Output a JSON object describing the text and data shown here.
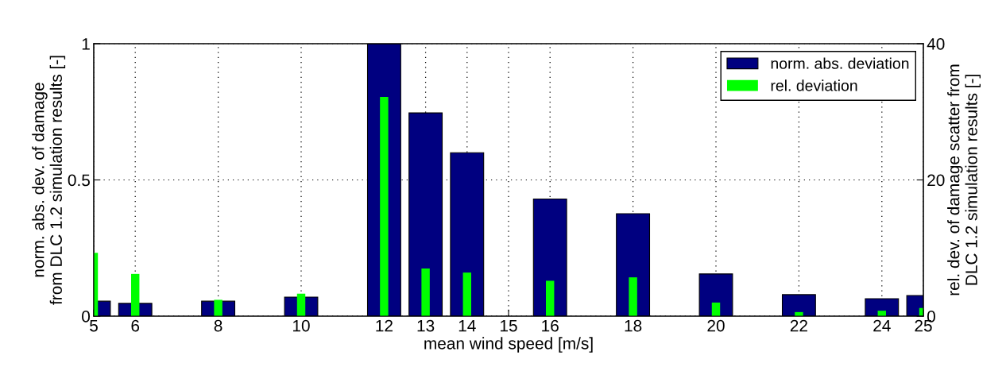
{
  "chart_data": {
    "type": "bar",
    "xlabel": "mean wind speed [m/s]",
    "ylabel": "norm. abs. dev. of damage\nfrom DLC 1.2 simulation results [-]",
    "y2label": "rel. dev. of damage scatter from\nDLC 1.2 simulation results [-]",
    "x": [
      5,
      6,
      8,
      10,
      12,
      13,
      14,
      16,
      18,
      20,
      22,
      24,
      25
    ],
    "series": [
      {
        "name": "norm. abs. deviation",
        "color": "#000080",
        "values": [
          0.055,
          0.047,
          0.055,
          0.07,
          1.0,
          0.746,
          0.6,
          0.43,
          0.376,
          0.155,
          0.079,
          0.064,
          0.076
        ]
      },
      {
        "name": "rel. deviation",
        "color": "#00ff00",
        "axis": "y2",
        "values": [
          9.3,
          6.2,
          2.4,
          3.3,
          32.2,
          7.0,
          6.4,
          5.2,
          5.7,
          2.0,
          0.6,
          0.8,
          1.2
        ]
      }
    ],
    "xlim": [
      5,
      25
    ],
    "xticks": [
      5,
      6,
      8,
      10,
      12,
      13,
      14,
      15,
      16,
      18,
      20,
      22,
      24,
      25
    ],
    "ylim": [
      0,
      1
    ],
    "yticks": [
      0,
      0.5,
      1
    ],
    "y2lim": [
      0,
      40
    ],
    "y2ticks": [
      0,
      20,
      40
    ],
    "grid": true,
    "legend": "top right"
  }
}
